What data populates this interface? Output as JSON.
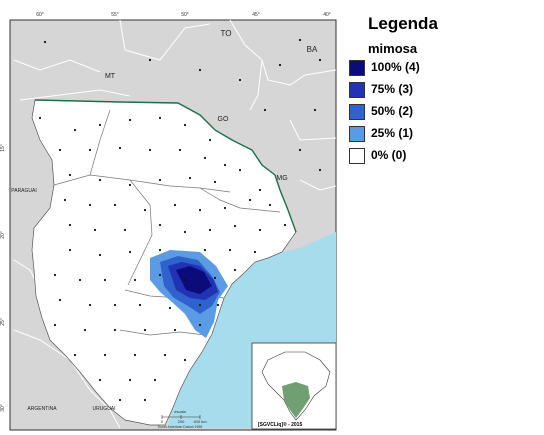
{
  "legend": {
    "title": "Legenda",
    "subtitle": "mimosa",
    "items": [
      {
        "label": "100% (4)",
        "color": "#0b0b7a"
      },
      {
        "label": "75% (3)",
        "color": "#2232b4"
      },
      {
        "label": "50% (2)",
        "color": "#2f62cc"
      },
      {
        "label": "25% (1)",
        "color": "#5b9be3"
      },
      {
        "label": "0% (0)",
        "color": "#ffffff"
      }
    ]
  },
  "map": {
    "state_labels": [
      "TO",
      "BA",
      "MT",
      "GO",
      "MG"
    ],
    "country_labels": [
      "PARAGUAI",
      "ARGENTINA",
      "URUGUAI"
    ],
    "longitude_ticks": [
      "60°",
      "55°",
      "50°",
      "45°",
      "40°"
    ],
    "latitude_ticks": [
      "15°",
      "20°",
      "25°",
      "30°"
    ],
    "scale_title": "escala",
    "scale_ticks": [
      "0",
      "200",
      "400 km"
    ],
    "datum": "South American Datum 1969",
    "credit": "[SGVCLiq]® - 2015",
    "colors": {
      "ocean": "#a7dcec",
      "land_outside": "#d6d6d6",
      "study_area": "#ffffff",
      "boundary_line": "#1e6e4c",
      "inset_highlight": "#6f9f72"
    }
  }
}
